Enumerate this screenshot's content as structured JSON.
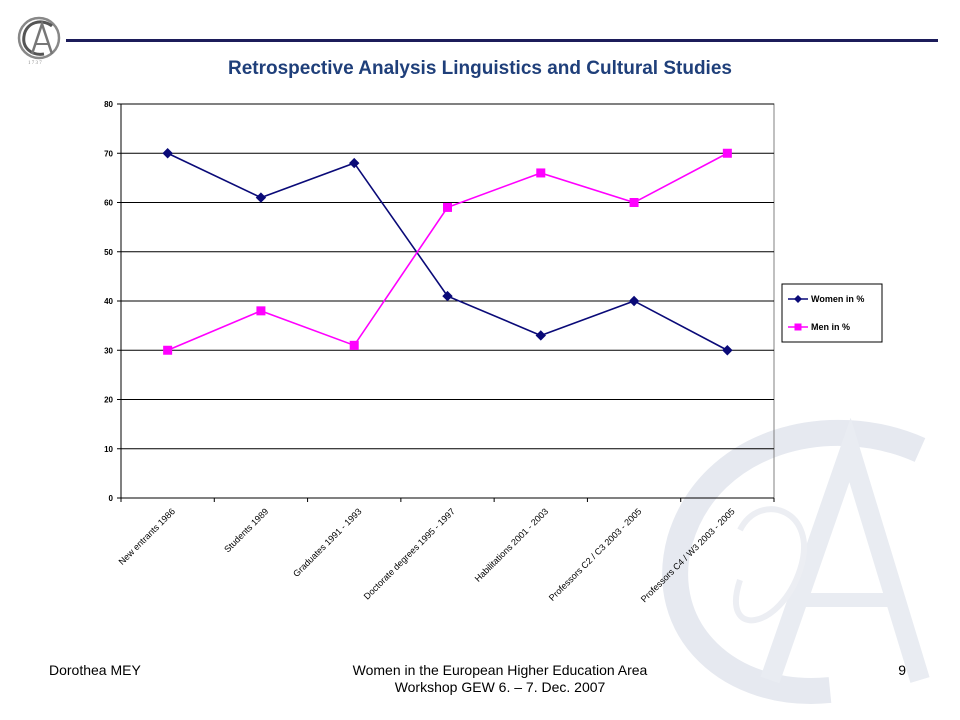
{
  "slide": {
    "title": "Retrospective Analysis Linguistics and Cultural Studies",
    "footer_left": "Dorothea MEY",
    "footer_center_line1": "Women in the European Higher Education Area",
    "footer_center_line2": "Workshop GEW  6. – 7. Dec. 2007",
    "page_number": "9"
  },
  "colors": {
    "title": "#1f3f7a",
    "rule": "#1c1c5a",
    "series_women": "#0a0a78",
    "series_men": "#ff00ff"
  },
  "chart_data": {
    "type": "line",
    "title": "",
    "xlabel": "",
    "ylabel": "",
    "ylim": [
      0,
      80
    ],
    "yticks": [
      0,
      10,
      20,
      30,
      40,
      50,
      60,
      70,
      80
    ],
    "grid": true,
    "legend_position": "right",
    "categories": [
      "New entrants 1986",
      "Students 1989",
      "Graduates 1991 - 1993",
      "Doctorate degrees 1995 - 1997",
      "Habilitations 2001 - 2003",
      "Professors C2 / C3 2003 - 2005",
      "Professors C4 / W3 2003 - 2005"
    ],
    "series": [
      {
        "name": "Women in %",
        "marker": "diamond",
        "values": [
          70,
          61,
          68,
          41,
          33,
          40,
          30
        ]
      },
      {
        "name": "Men in %",
        "marker": "square",
        "values": [
          30,
          38,
          31,
          59,
          66,
          60,
          70
        ]
      }
    ]
  }
}
